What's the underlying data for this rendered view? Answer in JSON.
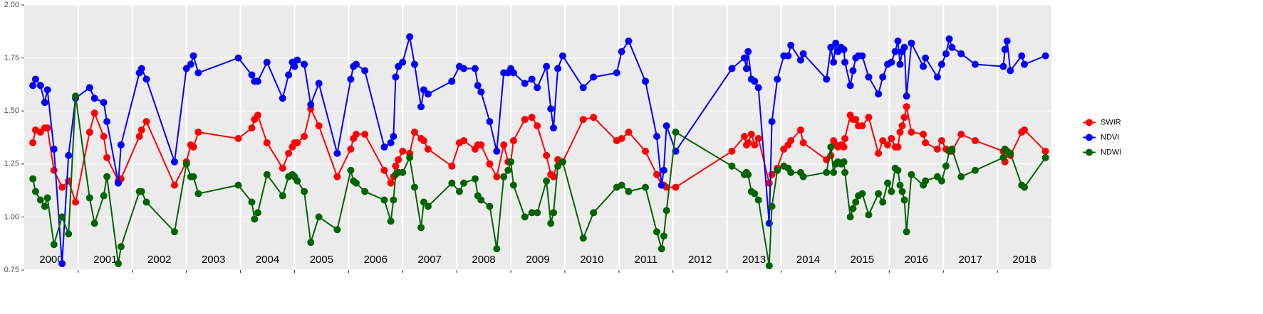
{
  "chart_data": {
    "type": "line",
    "x": [
      1999.66,
      1999.71,
      1999.8,
      1999.88,
      1999.93,
      2000.05,
      2000.2,
      2000.32,
      2000.45,
      2000.71,
      2000.8,
      2000.97,
      2001.03,
      2001.24,
      2001.29,
      2001.63,
      2001.67,
      2001.76,
      2002.28,
      2002.5,
      2002.58,
      2002.63,
      2002.72,
      2003.46,
      2003.71,
      2003.76,
      2003.82,
      2003.99,
      2004.28,
      2004.39,
      2004.46,
      2004.5,
      2004.55,
      2004.68,
      2004.8,
      2004.95,
      2005.29,
      2005.54,
      2005.59,
      2005.64,
      2005.8,
      2006.16,
      2006.28,
      2006.33,
      2006.37,
      2006.42,
      2006.5,
      2006.63,
      2006.72,
      2006.84,
      2006.89,
      2006.97,
      2007.41,
      2007.55,
      2007.63,
      2007.84,
      2007.89,
      2007.95,
      2008.11,
      2008.24,
      2008.37,
      2008.45,
      2008.5,
      2008.55,
      2008.76,
      2008.89,
      2008.99,
      2009.16,
      2009.24,
      2009.29,
      2009.37,
      2009.46,
      2009.84,
      2010.03,
      2010.46,
      2010.55,
      2010.68,
      2010.99,
      2011.2,
      2011.29,
      2011.33,
      2011.38,
      2011.55,
      2012.59,
      2012.82,
      2012.86,
      2012.89,
      2012.95,
      2013.01,
      2013.08,
      2013.28,
      2013.33,
      2013.43,
      2013.55,
      2013.63,
      2013.68,
      2013.86,
      2013.91,
      2014.34,
      2014.42,
      2014.47,
      2014.51,
      2014.55,
      2014.61,
      2014.66,
      2014.68,
      2014.78,
      2014.83,
      2014.88,
      2014.93,
      2015.0,
      2015.12,
      2015.3,
      2015.38,
      2015.47,
      2015.54,
      2015.61,
      2015.66,
      2015.7,
      2015.74,
      2015.78,
      2015.82,
      2015.91,
      2016.13,
      2016.17,
      2016.39,
      2016.47,
      2016.55,
      2016.61,
      2016.66,
      2016.83,
      2017.09,
      2017.61,
      2017.64,
      2017.68,
      2017.74,
      2017.95,
      2018.0,
      2018.39
    ],
    "series": [
      {
        "name": "SWIR",
        "color": "#ff0000",
        "values": [
          1.35,
          1.41,
          1.4,
          1.42,
          1.42,
          1.22,
          1.14,
          1.17,
          1.07,
          1.4,
          1.49,
          1.38,
          1.28,
          1.17,
          1.18,
          1.38,
          1.41,
          1.45,
          1.15,
          1.26,
          1.34,
          1.33,
          1.4,
          1.37,
          1.42,
          1.46,
          1.48,
          1.35,
          1.23,
          1.3,
          1.33,
          1.35,
          1.35,
          1.38,
          1.51,
          1.43,
          1.19,
          1.32,
          1.37,
          1.39,
          1.39,
          1.22,
          1.16,
          1.19,
          1.24,
          1.27,
          1.31,
          1.3,
          1.4,
          1.37,
          1.36,
          1.32,
          1.24,
          1.35,
          1.36,
          1.32,
          1.34,
          1.34,
          1.25,
          1.19,
          1.34,
          1.26,
          1.26,
          1.36,
          1.46,
          1.47,
          1.43,
          1.29,
          1.2,
          1.19,
          1.27,
          1.26,
          1.46,
          1.47,
          1.36,
          1.37,
          1.4,
          1.31,
          1.2,
          1.15,
          1.15,
          1.14,
          1.14,
          1.31,
          1.38,
          1.34,
          1.35,
          1.39,
          1.34,
          1.37,
          1.16,
          1.2,
          1.23,
          1.32,
          1.34,
          1.36,
          1.41,
          1.35,
          1.27,
          1.29,
          1.36,
          1.34,
          1.33,
          1.34,
          1.33,
          1.37,
          1.48,
          1.46,
          1.46,
          1.43,
          1.43,
          1.47,
          1.3,
          1.36,
          1.34,
          1.37,
          1.33,
          1.33,
          1.4,
          1.43,
          1.47,
          1.52,
          1.4,
          1.39,
          1.35,
          1.32,
          1.36,
          1.32,
          1.31,
          1.31,
          1.39,
          1.36,
          1.31,
          1.26,
          1.31,
          1.29,
          1.4,
          1.41,
          1.31
        ]
      },
      {
        "name": "NDVI",
        "color": "#0000ff",
        "values": [
          1.62,
          1.65,
          1.62,
          1.54,
          1.6,
          1.32,
          0.78,
          1.29,
          1.56,
          1.61,
          1.56,
          1.54,
          1.45,
          1.16,
          1.34,
          1.68,
          1.7,
          1.65,
          1.26,
          1.7,
          1.72,
          1.76,
          1.68,
          1.75,
          1.67,
          1.64,
          1.64,
          1.73,
          1.56,
          1.67,
          1.73,
          1.71,
          1.74,
          1.72,
          1.53,
          1.63,
          1.3,
          1.65,
          1.71,
          1.72,
          1.69,
          1.33,
          1.35,
          1.38,
          1.66,
          1.71,
          1.73,
          1.85,
          1.72,
          1.52,
          1.6,
          1.58,
          1.64,
          1.71,
          1.7,
          1.7,
          1.62,
          1.59,
          1.45,
          1.31,
          1.68,
          1.68,
          1.7,
          1.68,
          1.63,
          1.65,
          1.61,
          1.71,
          1.51,
          1.42,
          1.7,
          1.76,
          1.61,
          1.66,
          1.68,
          1.78,
          1.83,
          1.64,
          1.38,
          1.15,
          1.22,
          1.43,
          1.31,
          1.7,
          1.75,
          1.7,
          1.78,
          1.65,
          1.64,
          1.61,
          0.97,
          1.45,
          1.65,
          1.76,
          1.76,
          1.81,
          1.74,
          1.77,
          1.65,
          1.8,
          1.73,
          1.82,
          1.78,
          1.8,
          1.79,
          1.73,
          1.62,
          1.69,
          1.75,
          1.76,
          1.76,
          1.66,
          1.58,
          1.66,
          1.72,
          1.73,
          1.78,
          1.83,
          1.72,
          1.78,
          1.8,
          1.57,
          1.82,
          1.71,
          1.75,
          1.66,
          1.72,
          1.77,
          1.84,
          1.8,
          1.77,
          1.72,
          1.71,
          1.79,
          1.83,
          1.69,
          1.76,
          1.72,
          1.76
        ]
      },
      {
        "name": "NDWI",
        "color": "#006400",
        "values": [
          1.18,
          1.12,
          1.08,
          1.05,
          1.09,
          0.87,
          1.0,
          0.92,
          1.57,
          1.09,
          0.97,
          1.1,
          1.19,
          0.78,
          0.86,
          1.12,
          1.12,
          1.07,
          0.93,
          1.25,
          1.19,
          1.19,
          1.11,
          1.15,
          1.07,
          0.99,
          1.02,
          1.2,
          1.1,
          1.19,
          1.2,
          1.19,
          1.17,
          1.12,
          0.88,
          1.0,
          0.94,
          1.22,
          1.17,
          1.16,
          1.12,
          1.08,
          0.98,
          1.08,
          1.2,
          1.21,
          1.21,
          1.28,
          1.14,
          0.95,
          1.07,
          1.05,
          1.16,
          1.12,
          1.16,
          1.18,
          1.1,
          1.08,
          1.05,
          0.85,
          1.19,
          1.22,
          1.26,
          1.15,
          1.0,
          1.02,
          1.02,
          1.17,
          0.97,
          1.02,
          1.24,
          1.26,
          0.9,
          1.02,
          1.14,
          1.15,
          1.12,
          1.14,
          0.93,
          0.85,
          0.91,
          1.03,
          1.4,
          1.24,
          1.2,
          1.21,
          1.2,
          1.12,
          1.11,
          1.08,
          0.77,
          1.05,
          1.22,
          1.24,
          1.23,
          1.21,
          1.21,
          1.19,
          1.21,
          1.33,
          1.21,
          1.25,
          1.26,
          1.25,
          1.26,
          1.21,
          1.0,
          1.04,
          1.07,
          1.1,
          1.11,
          1.01,
          1.11,
          1.07,
          1.16,
          1.12,
          1.23,
          1.22,
          1.15,
          1.12,
          1.08,
          0.93,
          1.2,
          1.15,
          1.17,
          1.19,
          1.17,
          1.24,
          1.31,
          1.32,
          1.19,
          1.22,
          1.28,
          1.32,
          1.31,
          1.3,
          1.15,
          1.14,
          1.28
        ]
      }
    ],
    "xlim": [
      1999.5,
      2018.5
    ],
    "xticks": [
      2000,
      2001,
      2002,
      2003,
      2004,
      2005,
      2006,
      2007,
      2008,
      2009,
      2010,
      2011,
      2012,
      2013,
      2014,
      2015,
      2016,
      2017,
      2018
    ],
    "ylim": [
      0.75,
      2.0
    ],
    "yticks": [
      {
        "value": 0.75,
        "label": "0.75"
      },
      {
        "value": 1.0,
        "label": "1.00"
      },
      {
        "value": 1.25,
        "label": "1.25"
      },
      {
        "value": 1.5,
        "label": "1.50"
      },
      {
        "value": 1.75,
        "label": "1.75"
      },
      {
        "value": 2.0,
        "label": "2.00"
      }
    ],
    "grid": true,
    "legend": "right"
  }
}
